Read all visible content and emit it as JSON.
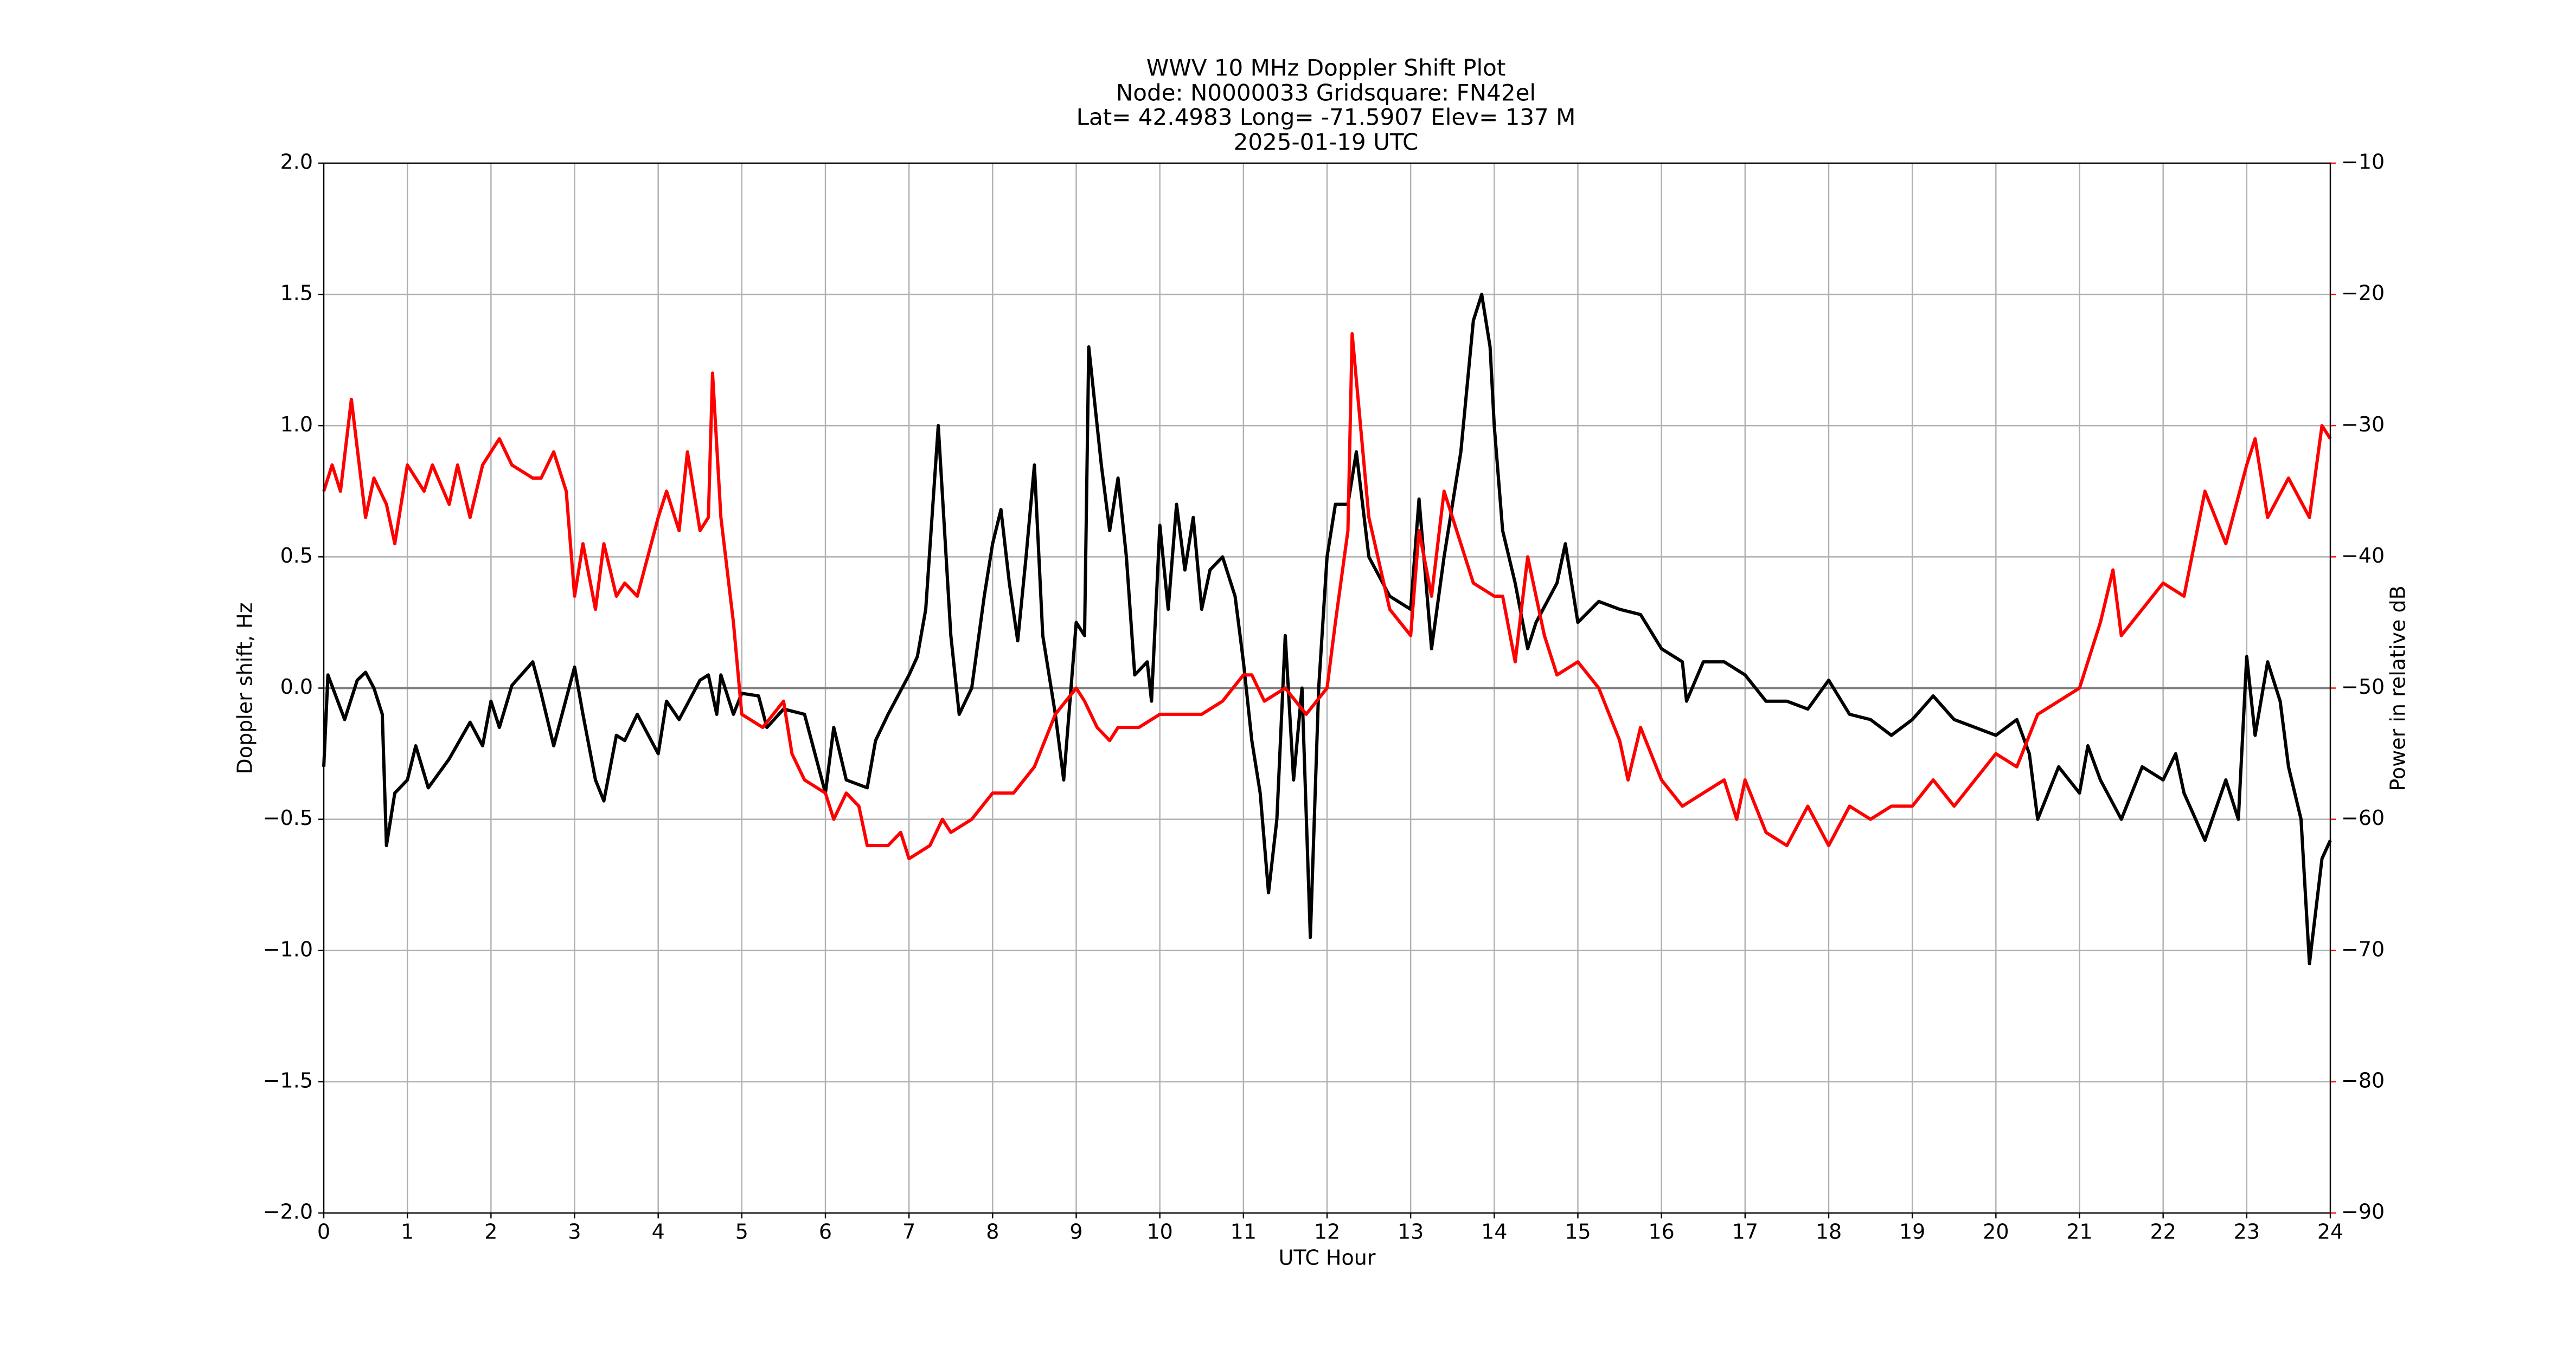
{
  "chart_data": {
    "type": "line",
    "title": [
      "WWV 10 MHz Doppler Shift Plot",
      "Node:  N0000033     Gridsquare:  FN42el",
      "Lat= 42.4983    Long= -71.5907    Elev= 137 M",
      "2025-01-19  UTC"
    ],
    "x_label": "UTC Hour",
    "y_label": "Doppler shift, Hz",
    "y2_label": "Power in relative dB",
    "xlim": [
      0,
      24
    ],
    "xticks": [
      0,
      1,
      2,
      3,
      4,
      5,
      6,
      7,
      8,
      9,
      10,
      11,
      12,
      13,
      14,
      15,
      16,
      17,
      18,
      19,
      20,
      21,
      22,
      23,
      24
    ],
    "ylim": [
      -2,
      2
    ],
    "yticks": [
      {
        "value": -2,
        "label": "−2.0"
      },
      {
        "value": -1.5,
        "label": "−1.5"
      },
      {
        "value": -1,
        "label": "−1.0"
      },
      {
        "value": -0.5,
        "label": "−0.5"
      },
      {
        "value": 0,
        "label": "0.0"
      },
      {
        "value": 0.5,
        "label": "0.5"
      },
      {
        "value": 1,
        "label": "1.0"
      },
      {
        "value": 1.5,
        "label": "1.5"
      },
      {
        "value": 2,
        "label": "2.0"
      }
    ],
    "y2lim": [
      -90,
      -10
    ],
    "y2ticks": [
      {
        "value": -90,
        "label": "−90"
      },
      {
        "value": -80,
        "label": "−80"
      },
      {
        "value": -70,
        "label": "−70"
      },
      {
        "value": -60,
        "label": "−60"
      },
      {
        "value": -50,
        "label": "−50"
      },
      {
        "value": -40,
        "label": "−40"
      },
      {
        "value": -30,
        "label": "−30"
      },
      {
        "value": -20,
        "label": "−20"
      },
      {
        "value": -10,
        "label": "−10"
      }
    ],
    "y2_color": "#ff0000",
    "grid": true,
    "hlines": [
      0
    ],
    "series": [
      {
        "color": "#000000",
        "x": [
          0,
          0.05,
          0.25,
          0.4,
          0.5,
          0.6,
          0.7,
          0.75,
          0.85,
          1.0,
          1.1,
          1.25,
          1.5,
          1.75,
          1.9,
          2.0,
          2.1,
          2.25,
          2.5,
          2.6,
          2.75,
          3.0,
          3.1,
          3.25,
          3.35,
          3.5,
          3.6,
          3.75,
          4.0,
          4.1,
          4.25,
          4.5,
          4.6,
          4.7,
          4.75,
          4.9,
          5.0,
          5.2,
          5.3,
          5.5,
          5.75,
          6.0,
          6.1,
          6.25,
          6.5,
          6.6,
          6.75,
          7.0,
          7.1,
          7.2,
          7.35,
          7.5,
          7.6,
          7.75,
          7.9,
          8.0,
          8.1,
          8.2,
          8.3,
          8.4,
          8.5,
          8.6,
          8.75,
          8.85,
          9.0,
          9.1,
          9.15,
          9.3,
          9.4,
          9.5,
          9.6,
          9.7,
          9.85,
          9.9,
          10.0,
          10.1,
          10.2,
          10.3,
          10.4,
          10.5,
          10.6,
          10.75,
          10.9,
          11.0,
          11.1,
          11.2,
          11.3,
          11.4,
          11.5,
          11.6,
          11.7,
          11.8,
          11.9,
          12.0,
          12.1,
          12.25,
          12.35,
          12.5,
          12.75,
          13.0,
          13.1,
          13.25,
          13.4,
          13.6,
          13.75,
          13.85,
          13.95,
          14.0,
          14.1,
          14.25,
          14.4,
          14.5,
          14.75,
          14.85,
          15.0,
          15.25,
          15.5,
          15.75,
          16.0,
          16.25,
          16.3,
          16.5,
          16.75,
          17.0,
          17.25,
          17.5,
          17.75,
          18.0,
          18.25,
          18.5,
          18.75,
          19.0,
          19.25,
          19.5,
          19.75,
          20.0,
          20.25,
          20.4,
          20.5,
          20.75,
          21.0,
          21.1,
          21.25,
          21.5,
          21.75,
          22.0,
          22.15,
          22.25,
          22.5,
          22.75,
          22.9,
          23.0,
          23.1,
          23.25,
          23.4,
          23.5,
          23.65,
          23.75,
          23.9,
          24.0
        ],
        "values": [
          -0.3,
          0.05,
          -0.12,
          0.03,
          0.06,
          0.0,
          -0.1,
          -0.6,
          -0.4,
          -0.35,
          -0.22,
          -0.38,
          -0.27,
          -0.13,
          -0.22,
          -0.05,
          -0.15,
          0.01,
          0.1,
          -0.02,
          -0.22,
          0.08,
          -0.1,
          -0.35,
          -0.43,
          -0.18,
          -0.2,
          -0.1,
          -0.25,
          -0.05,
          -0.12,
          0.03,
          0.05,
          -0.1,
          0.05,
          -0.1,
          -0.02,
          -0.03,
          -0.15,
          -0.08,
          -0.1,
          -0.4,
          -0.15,
          -0.35,
          -0.38,
          -0.2,
          -0.1,
          0.05,
          0.12,
          0.3,
          1.0,
          0.2,
          -0.1,
          0.0,
          0.35,
          0.55,
          0.68,
          0.4,
          0.18,
          0.5,
          0.85,
          0.2,
          -0.1,
          -0.35,
          0.25,
          0.2,
          1.3,
          0.85,
          0.6,
          0.8,
          0.5,
          0.05,
          0.1,
          -0.05,
          0.62,
          0.3,
          0.7,
          0.45,
          0.65,
          0.3,
          0.45,
          0.5,
          0.35,
          0.1,
          -0.2,
          -0.4,
          -0.78,
          -0.5,
          0.2,
          -0.35,
          0.0,
          -0.95,
          0.0,
          0.5,
          0.7,
          0.7,
          0.9,
          0.5,
          0.35,
          0.3,
          0.72,
          0.15,
          0.5,
          0.9,
          1.4,
          1.5,
          1.3,
          1.0,
          0.6,
          0.4,
          0.15,
          0.25,
          0.4,
          0.55,
          0.25,
          0.33,
          0.3,
          0.28,
          0.15,
          0.1,
          -0.05,
          0.1,
          0.1,
          0.05,
          -0.05,
          -0.05,
          -0.08,
          0.03,
          -0.1,
          -0.12,
          -0.18,
          -0.12,
          -0.03,
          -0.12,
          -0.15,
          -0.18,
          -0.12,
          -0.25,
          -0.5,
          -0.3,
          -0.4,
          -0.22,
          -0.35,
          -0.5,
          -0.3,
          -0.35,
          -0.25,
          -0.4,
          -0.58,
          -0.35,
          -0.5,
          0.12,
          -0.18,
          0.1,
          -0.05,
          -0.3,
          -0.5,
          -1.05,
          -0.65,
          -0.58
        ]
      },
      {
        "color": "#ff0000",
        "axis": "y2",
        "x": [
          0,
          0.1,
          0.2,
          0.33,
          0.5,
          0.6,
          0.75,
          0.85,
          1.0,
          1.2,
          1.3,
          1.5,
          1.6,
          1.75,
          1.9,
          2.0,
          2.1,
          2.25,
          2.5,
          2.6,
          2.75,
          2.9,
          3.0,
          3.1,
          3.25,
          3.35,
          3.5,
          3.6,
          3.75,
          4.0,
          4.1,
          4.25,
          4.35,
          4.5,
          4.6,
          4.65,
          4.75,
          4.9,
          5.0,
          5.25,
          5.5,
          5.6,
          5.75,
          6.0,
          6.1,
          6.25,
          6.4,
          6.5,
          6.75,
          6.9,
          7.0,
          7.25,
          7.4,
          7.5,
          7.75,
          8.0,
          8.25,
          8.5,
          8.75,
          9.0,
          9.1,
          9.25,
          9.4,
          9.5,
          9.75,
          10.0,
          10.25,
          10.5,
          10.75,
          11.0,
          11.1,
          11.25,
          11.5,
          11.75,
          12.0,
          12.1,
          12.25,
          12.3,
          12.5,
          12.75,
          13.0,
          13.1,
          13.25,
          13.4,
          13.5,
          13.75,
          14.0,
          14.1,
          14.25,
          14.4,
          14.5,
          14.6,
          14.75,
          15.0,
          15.25,
          15.5,
          15.6,
          15.75,
          16.0,
          16.25,
          16.5,
          16.75,
          16.9,
          17.0,
          17.25,
          17.5,
          17.75,
          18.0,
          18.25,
          18.5,
          18.75,
          19.0,
          19.25,
          19.5,
          19.75,
          20.0,
          20.25,
          20.5,
          20.75,
          21.0,
          21.25,
          21.4,
          21.5,
          21.75,
          22.0,
          22.25,
          22.5,
          22.75,
          23.0,
          23.1,
          23.25,
          23.5,
          23.75,
          23.9,
          24.0
        ],
        "values": [
          -35,
          -33,
          -35,
          -28,
          -37,
          -34,
          -36,
          -39,
          -33,
          -35,
          -33,
          -36,
          -33,
          -37,
          -33,
          -32,
          -31,
          -33,
          -34,
          -34,
          -32,
          -35,
          -43,
          -39,
          -44,
          -39,
          -43,
          -42,
          -43,
          -37,
          -35,
          -38,
          -32,
          -38,
          -37,
          -26,
          -37,
          -45,
          -52,
          -53,
          -51,
          -55,
          -57,
          -58,
          -60,
          -58,
          -59,
          -62,
          -62,
          -61,
          -63,
          -62,
          -60,
          -61,
          -60,
          -58,
          -58,
          -56,
          -52,
          -50,
          -51,
          -53,
          -54,
          -53,
          -53,
          -52,
          -52,
          -52,
          -51,
          -49,
          -49,
          -51,
          -50,
          -52,
          -50,
          -45,
          -38,
          -23,
          -37,
          -44,
          -46,
          -38,
          -43,
          -35,
          -37,
          -42,
          -43,
          -43,
          -48,
          -40,
          -43,
          -46,
          -49,
          -48,
          -50,
          -54,
          -57,
          -53,
          -57,
          -59,
          -58,
          -57,
          -60,
          -57,
          -61,
          -62,
          -59,
          -62,
          -59,
          -60,
          -59,
          -59,
          -57,
          -59,
          -57,
          -55,
          -56,
          -52,
          -51,
          -50,
          -45,
          -41,
          -46,
          -44,
          -42,
          -43,
          -35,
          -39,
          -33,
          -31,
          -37,
          -34,
          -37,
          -30,
          -31
        ]
      }
    ]
  }
}
